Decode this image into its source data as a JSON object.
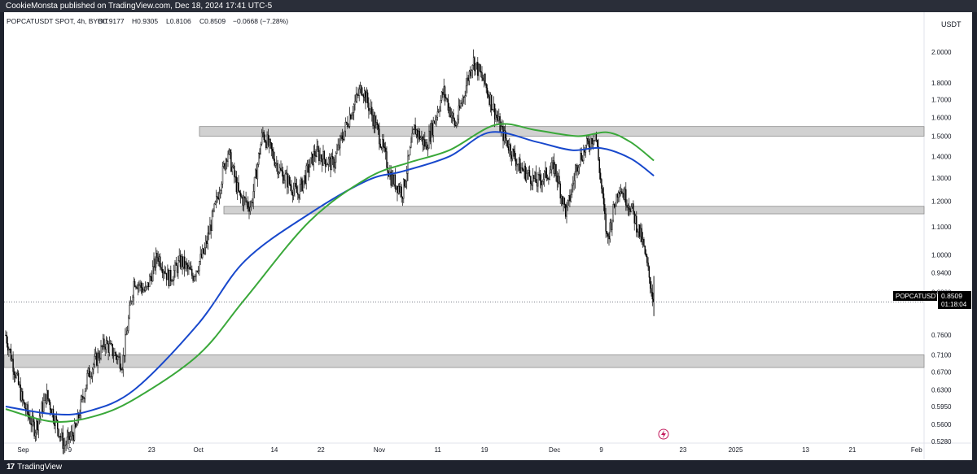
{
  "publish_bar": {
    "text": "CookieMonsta published on TradingView.com, Dec 18, 2024 17:41 UTC-5"
  },
  "legend": {
    "symbol": "POPCATUSDT SPOT, 4h, BYBIT",
    "open": "O0.9177",
    "high": "H0.9305",
    "low": "L0.8106",
    "close": "C0.8509",
    "change": "−0.0668 (−7.28%)"
  },
  "price_axis": {
    "currency": "USDT",
    "ticks": [
      "2.0000",
      "1.8000",
      "1.7000",
      "1.6000",
      "1.5000",
      "1.4000",
      "1.3000",
      "1.2000",
      "1.1000",
      "1.0000",
      "0.9400",
      "0.8800",
      "0.7600",
      "0.7100",
      "0.6700",
      "0.6300",
      "0.5950",
      "0.5600",
      "0.5280"
    ]
  },
  "time_axis": {
    "ticks": [
      "Sep",
      "9",
      "23",
      "Oct",
      "14",
      "22",
      "Nov",
      "11",
      "19",
      "Dec",
      "9",
      "23",
      "2025",
      "13",
      "21",
      "Feb"
    ]
  },
  "current_price": {
    "symbol_label": "POPCATUSDT",
    "price": "0.8509",
    "countdown": "01:18:04"
  },
  "footer": {
    "brand": "TradingView"
  },
  "colors": {
    "candle": "#000000",
    "ma_blue": "#1848cc",
    "ma_green": "#3aa83a",
    "zone_fill": "#d1d1d1",
    "zone_stroke": "#8c8c8c",
    "background": "#ffffff",
    "frame": "#1e222d",
    "event_icon": "#c2185b"
  },
  "chart_data": {
    "type": "candlestick",
    "symbol": "POPCATUSDT",
    "exchange": "BYBIT",
    "timeframe": "4h",
    "y_scale": "log",
    "ylim": [
      0.51,
      2.2
    ],
    "last_close": 0.8509,
    "horizontal_zones": [
      {
        "low": 1.5,
        "high": 1.55
      },
      {
        "low": 1.15,
        "high": 1.18
      },
      {
        "low": 0.68,
        "high": 0.71
      }
    ],
    "price_path": [
      {
        "date": "2024-08-29",
        "price": 0.76
      },
      {
        "date": "2024-09-01",
        "price": 0.6
      },
      {
        "date": "2024-09-03",
        "price": 0.55
      },
      {
        "date": "2024-09-05",
        "price": 0.62
      },
      {
        "date": "2024-09-08",
        "price": 0.52
      },
      {
        "date": "2024-09-10",
        "price": 0.55
      },
      {
        "date": "2024-09-12",
        "price": 0.66
      },
      {
        "date": "2024-09-15",
        "price": 0.74
      },
      {
        "date": "2024-09-18",
        "price": 0.69
      },
      {
        "date": "2024-09-20",
        "price": 0.92
      },
      {
        "date": "2024-09-22",
        "price": 0.88
      },
      {
        "date": "2024-09-24",
        "price": 1.0
      },
      {
        "date": "2024-09-26",
        "price": 0.92
      },
      {
        "date": "2024-09-28",
        "price": 0.98
      },
      {
        "date": "2024-09-30",
        "price": 0.93
      },
      {
        "date": "2024-10-02",
        "price": 1.01
      },
      {
        "date": "2024-10-04",
        "price": 1.19
      },
      {
        "date": "2024-10-06",
        "price": 1.43
      },
      {
        "date": "2024-10-08",
        "price": 1.22
      },
      {
        "date": "2024-10-10",
        "price": 1.18
      },
      {
        "date": "2024-10-12",
        "price": 1.52
      },
      {
        "date": "2024-10-15",
        "price": 1.33
      },
      {
        "date": "2024-10-18",
        "price": 1.23
      },
      {
        "date": "2024-10-21",
        "price": 1.42
      },
      {
        "date": "2024-10-24",
        "price": 1.36
      },
      {
        "date": "2024-10-27",
        "price": 1.62
      },
      {
        "date": "2024-10-29",
        "price": 1.78
      },
      {
        "date": "2024-11-01",
        "price": 1.5
      },
      {
        "date": "2024-11-03",
        "price": 1.3
      },
      {
        "date": "2024-11-05",
        "price": 1.24
      },
      {
        "date": "2024-11-07",
        "price": 1.54
      },
      {
        "date": "2024-11-09",
        "price": 1.45
      },
      {
        "date": "2024-11-12",
        "price": 1.75
      },
      {
        "date": "2024-11-14",
        "price": 1.55
      },
      {
        "date": "2024-11-17",
        "price": 1.95
      },
      {
        "date": "2024-11-19",
        "price": 1.8
      },
      {
        "date": "2024-11-22",
        "price": 1.52
      },
      {
        "date": "2024-11-25",
        "price": 1.35
      },
      {
        "date": "2024-11-28",
        "price": 1.28
      },
      {
        "date": "2024-12-01",
        "price": 1.35
      },
      {
        "date": "2024-12-03",
        "price": 1.15
      },
      {
        "date": "2024-12-05",
        "price": 1.38
      },
      {
        "date": "2024-12-08",
        "price": 1.52
      },
      {
        "date": "2024-12-10",
        "price": 1.05
      },
      {
        "date": "2024-12-12",
        "price": 1.27
      },
      {
        "date": "2024-12-14",
        "price": 1.18
      },
      {
        "date": "2024-12-16",
        "price": 1.05
      },
      {
        "date": "2024-12-18",
        "price": 0.8509
      }
    ],
    "moving_averages": [
      {
        "color": "#1848cc",
        "points": [
          {
            "date": "2024-08-29",
            "v": 0.595
          },
          {
            "date": "2024-09-06",
            "v": 0.58
          },
          {
            "date": "2024-09-12",
            "v": 0.585
          },
          {
            "date": "2024-09-20",
            "v": 0.63
          },
          {
            "date": "2024-10-01",
            "v": 0.79
          },
          {
            "date": "2024-10-09",
            "v": 0.98
          },
          {
            "date": "2024-10-20",
            "v": 1.15
          },
          {
            "date": "2024-10-30",
            "v": 1.29
          },
          {
            "date": "2024-11-05",
            "v": 1.33
          },
          {
            "date": "2024-11-13",
            "v": 1.4
          },
          {
            "date": "2024-11-20",
            "v": 1.52
          },
          {
            "date": "2024-11-28",
            "v": 1.47
          },
          {
            "date": "2024-12-04",
            "v": 1.43
          },
          {
            "date": "2024-12-09",
            "v": 1.44
          },
          {
            "date": "2024-12-14",
            "v": 1.39
          },
          {
            "date": "2024-12-18",
            "v": 1.31
          }
        ]
      },
      {
        "color": "#3aa83a",
        "points": [
          {
            "date": "2024-08-29",
            "v": 0.59
          },
          {
            "date": "2024-09-06",
            "v": 0.565
          },
          {
            "date": "2024-09-13",
            "v": 0.575
          },
          {
            "date": "2024-09-20",
            "v": 0.61
          },
          {
            "date": "2024-10-01",
            "v": 0.71
          },
          {
            "date": "2024-10-09",
            "v": 0.86
          },
          {
            "date": "2024-10-20",
            "v": 1.12
          },
          {
            "date": "2024-10-30",
            "v": 1.3
          },
          {
            "date": "2024-11-06",
            "v": 1.37
          },
          {
            "date": "2024-11-13",
            "v": 1.43
          },
          {
            "date": "2024-11-21",
            "v": 1.56
          },
          {
            "date": "2024-11-28",
            "v": 1.53
          },
          {
            "date": "2024-12-05",
            "v": 1.5
          },
          {
            "date": "2024-12-10",
            "v": 1.52
          },
          {
            "date": "2024-12-14",
            "v": 1.47
          },
          {
            "date": "2024-12-18",
            "v": 1.38
          }
        ]
      }
    ]
  }
}
